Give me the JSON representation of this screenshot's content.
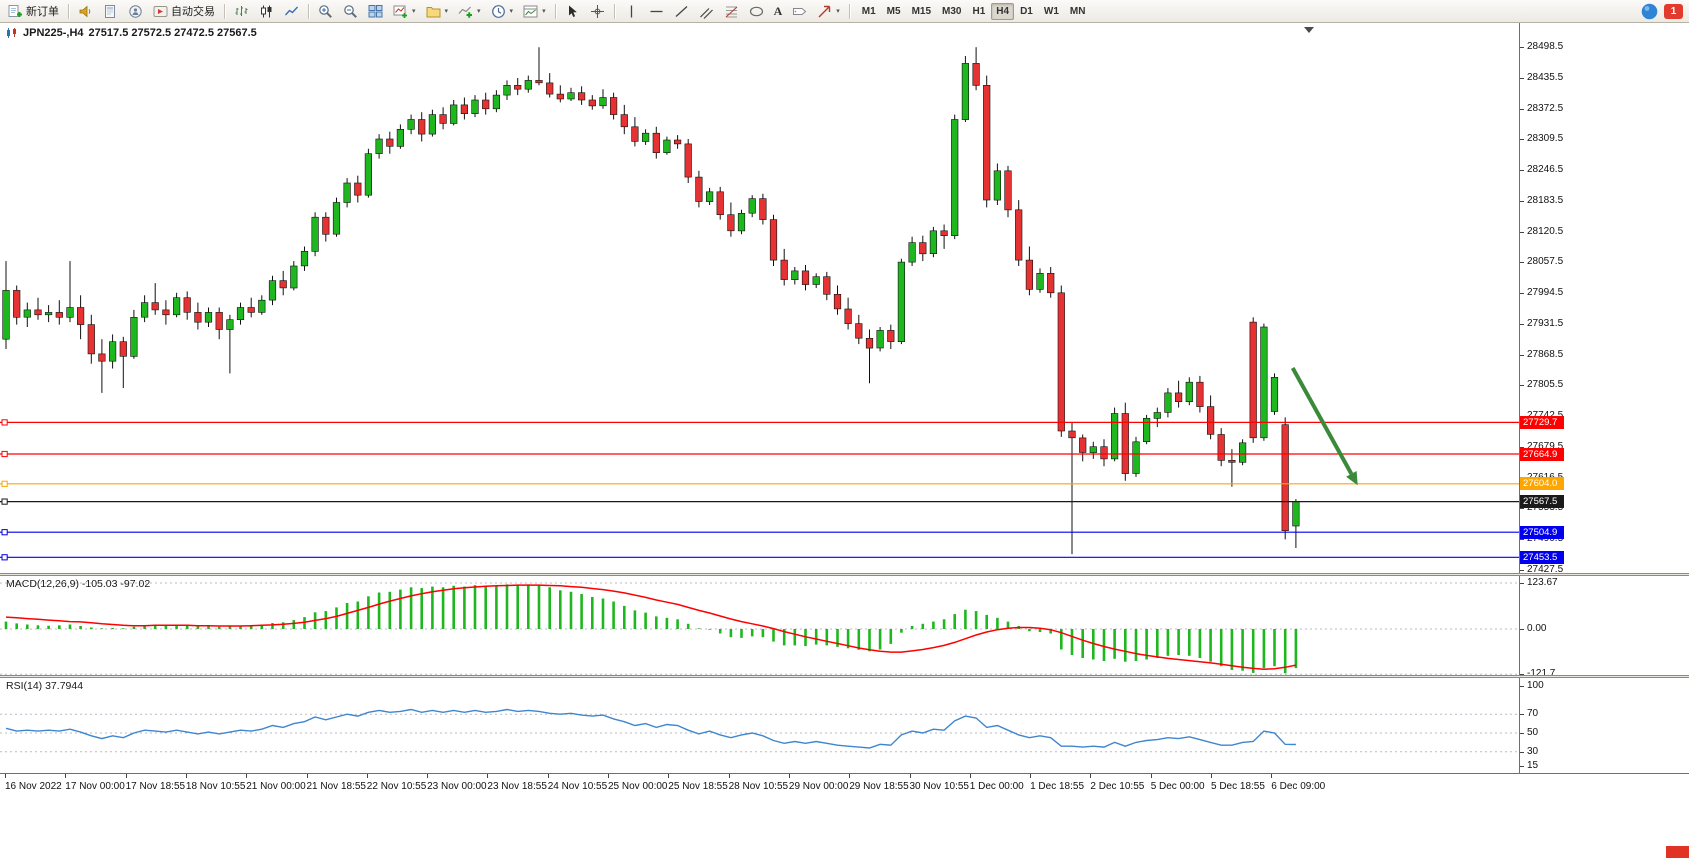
{
  "toolbar": {
    "new_order_label": "新订单",
    "auto_trading_label": "自动交易",
    "timeframes": [
      "M1",
      "M5",
      "M15",
      "M30",
      "H1",
      "H4",
      "D1",
      "W1",
      "MN"
    ],
    "active_timeframe": "H4",
    "notification_badge": "1"
  },
  "chart": {
    "title_symbol": "JPN225-,H4",
    "title_ohlc": "27517.5 27572.5 27472.5 27567.5"
  },
  "levels": [
    {
      "price": "27729.7",
      "value": 27729.7,
      "color": "#FF0000",
      "current": false
    },
    {
      "price": "27664.9",
      "value": 27664.9,
      "color": "#FF0000",
      "current": false
    },
    {
      "price": "27604.0",
      "value": 27604.0,
      "color": "#FFA500",
      "current": false
    },
    {
      "price": "27567.5",
      "value": 27567.5,
      "color": "#1A1A1A",
      "current": true
    },
    {
      "price": "27504.9",
      "value": 27504.9,
      "color": "#0000EE",
      "current": false
    },
    {
      "price": "27453.5",
      "value": 27453.5,
      "color": "#0000EE",
      "current": false
    }
  ],
  "price_axis": {
    "labels": [
      "28498.5",
      "28435.5",
      "28372.5",
      "28309.5",
      "28246.5",
      "28183.5",
      "28120.5",
      "28057.5",
      "27994.5",
      "27931.5",
      "27868.5",
      "27805.5",
      "27742.5",
      "27679.5",
      "27616.5",
      "27553.5",
      "27490.5",
      "27427.5"
    ]
  },
  "macd": {
    "label": "MACD(12,26,9) -105.03 -97.02",
    "scale_labels": [
      "123.67",
      "0.00",
      "-121.7"
    ],
    "scale_values": [
      123.67,
      0,
      -121.7
    ]
  },
  "rsi": {
    "label": "RSI(14) 37.7944",
    "scale_labels": [
      "100",
      "70",
      "50",
      "30",
      "15"
    ],
    "scale_values": [
      100,
      70,
      50,
      30,
      15
    ],
    "gridlines": [
      70,
      50,
      30
    ]
  },
  "time_axis": {
    "labels": [
      "16 Nov 2022",
      "17 Nov 00:00",
      "17 Nov 18:55",
      "18 Nov 10:55",
      "21 Nov 00:00",
      "21 Nov 18:55",
      "22 Nov 10:55",
      "23 Nov 00:00",
      "23 Nov 18:55",
      "24 Nov 10:55",
      "25 Nov 00:00",
      "25 Nov 18:55",
      "28 Nov 10:55",
      "29 Nov 00:00",
      "29 Nov 18:55",
      "30 Nov 10:55",
      "1 Dec 00:00",
      "1 Dec 18:55",
      "2 Dec 10:55",
      "5 Dec 00:00",
      "5 Dec 18:55",
      "6 Dec 09:00"
    ]
  },
  "colors": {
    "bull": "#1FB71F",
    "bear": "#E63232",
    "macd_signal": "#FF0000",
    "rsi_line": "#3E86CF",
    "arrow": "#3A8A3A"
  },
  "chart_data": {
    "type": "candlestick",
    "symbol": "JPN225-",
    "timeframe": "H4",
    "price_range_visible": [
      27427.5,
      28498.5
    ],
    "macd_range": [
      -121.7,
      123.67
    ],
    "rsi_levels": [
      70,
      50,
      30
    ],
    "horizontal_levels": [
      27729.7,
      27664.9,
      27604.0,
      27567.5,
      27504.9,
      27453.5
    ],
    "arrow_annotation": {
      "from": {
        "index": 120.7,
        "price": 27841
      },
      "to": {
        "index": 126.8,
        "price": 27601
      }
    },
    "candles_ohlc": [
      [
        27900,
        28060,
        27880,
        28000
      ],
      [
        28000,
        28010,
        27930,
        27945
      ],
      [
        27945,
        27975,
        27925,
        27960
      ],
      [
        27960,
        27985,
        27940,
        27950
      ],
      [
        27950,
        27970,
        27935,
        27955
      ],
      [
        27955,
        27980,
        27930,
        27945
      ],
      [
        27945,
        28060,
        27935,
        27965
      ],
      [
        27965,
        27990,
        27900,
        27930
      ],
      [
        27930,
        27950,
        27850,
        27870
      ],
      [
        27870,
        27900,
        27790,
        27855
      ],
      [
        27855,
        27910,
        27840,
        27895
      ],
      [
        27895,
        27905,
        27800,
        27865
      ],
      [
        27865,
        27960,
        27860,
        27945
      ],
      [
        27945,
        27990,
        27935,
        27975
      ],
      [
        27975,
        28015,
        27950,
        27960
      ],
      [
        27960,
        27980,
        27930,
        27950
      ],
      [
        27950,
        27995,
        27945,
        27985
      ],
      [
        27985,
        27998,
        27940,
        27955
      ],
      [
        27955,
        27975,
        27920,
        27935
      ],
      [
        27935,
        27965,
        27925,
        27955
      ],
      [
        27955,
        27965,
        27900,
        27920
      ],
      [
        27920,
        27950,
        27830,
        27940
      ],
      [
        27940,
        27975,
        27930,
        27965
      ],
      [
        27965,
        27985,
        27945,
        27955
      ],
      [
        27955,
        27990,
        27950,
        27980
      ],
      [
        27980,
        28030,
        27970,
        28020
      ],
      [
        28020,
        28040,
        27990,
        28005
      ],
      [
        28005,
        28060,
        28000,
        28050
      ],
      [
        28050,
        28090,
        28040,
        28080
      ],
      [
        28080,
        28160,
        28070,
        28150
      ],
      [
        28150,
        28160,
        28100,
        28115
      ],
      [
        28115,
        28190,
        28110,
        28180
      ],
      [
        28180,
        28230,
        28170,
        28220
      ],
      [
        28220,
        28235,
        28180,
        28195
      ],
      [
        28195,
        28290,
        28190,
        28280
      ],
      [
        28280,
        28320,
        28270,
        28310
      ],
      [
        28310,
        28325,
        28280,
        28295
      ],
      [
        28295,
        28340,
        28290,
        28330
      ],
      [
        28330,
        28360,
        28320,
        28350
      ],
      [
        28350,
        28365,
        28305,
        28320
      ],
      [
        28320,
        28370,
        28315,
        28360
      ],
      [
        28360,
        28375,
        28330,
        28342
      ],
      [
        28342,
        28390,
        28338,
        28380
      ],
      [
        28380,
        28395,
        28350,
        28362
      ],
      [
        28362,
        28400,
        28355,
        28390
      ],
      [
        28390,
        28405,
        28360,
        28372
      ],
      [
        28372,
        28410,
        28365,
        28400
      ],
      [
        28400,
        28430,
        28390,
        28420
      ],
      [
        28420,
        28435,
        28400,
        28412
      ],
      [
        28412,
        28440,
        28405,
        28430
      ],
      [
        28430,
        28498,
        28420,
        28425
      ],
      [
        28425,
        28445,
        28395,
        28402
      ],
      [
        28402,
        28420,
        28385,
        28392
      ],
      [
        28392,
        28415,
        28388,
        28405
      ],
      [
        28405,
        28418,
        28380,
        28390
      ],
      [
        28390,
        28400,
        28370,
        28378
      ],
      [
        28378,
        28412,
        28372,
        28395
      ],
      [
        28395,
        28405,
        28350,
        28360
      ],
      [
        28360,
        28380,
        28320,
        28335
      ],
      [
        28335,
        28355,
        28295,
        28305
      ],
      [
        28305,
        28330,
        28298,
        28322
      ],
      [
        28322,
        28335,
        28270,
        28282
      ],
      [
        28282,
        28315,
        28278,
        28308
      ],
      [
        28308,
        28318,
        28290,
        28300
      ],
      [
        28300,
        28310,
        28220,
        28232
      ],
      [
        28232,
        28245,
        28170,
        28182
      ],
      [
        28182,
        28210,
        28175,
        28202
      ],
      [
        28202,
        28212,
        28145,
        28155
      ],
      [
        28155,
        28180,
        28110,
        28122
      ],
      [
        28122,
        28165,
        28115,
        28158
      ],
      [
        28158,
        28195,
        28150,
        28188
      ],
      [
        28188,
        28198,
        28135,
        28145
      ],
      [
        28145,
        28155,
        28050,
        28062
      ],
      [
        28062,
        28085,
        28010,
        28022
      ],
      [
        28022,
        28048,
        28012,
        28040
      ],
      [
        28040,
        28052,
        28000,
        28012
      ],
      [
        28012,
        28035,
        28005,
        28028
      ],
      [
        28028,
        28038,
        27980,
        27992
      ],
      [
        27992,
        28010,
        27950,
        27962
      ],
      [
        27962,
        27985,
        27920,
        27932
      ],
      [
        27932,
        27950,
        27890,
        27902
      ],
      [
        27902,
        27920,
        27810,
        27882
      ],
      [
        27882,
        27925,
        27875,
        27918
      ],
      [
        27918,
        27930,
        27880,
        27895
      ],
      [
        27895,
        28065,
        27890,
        28058
      ],
      [
        28058,
        28110,
        28050,
        28098
      ],
      [
        28098,
        28112,
        28060,
        28075
      ],
      [
        28075,
        28130,
        28068,
        28122
      ],
      [
        28122,
        28135,
        28085,
        28112
      ],
      [
        28112,
        28360,
        28105,
        28350
      ],
      [
        28350,
        28480,
        28345,
        28465
      ],
      [
        28465,
        28498,
        28410,
        28420
      ],
      [
        28420,
        28440,
        28170,
        28185
      ],
      [
        28185,
        28260,
        28175,
        28245
      ],
      [
        28245,
        28255,
        28150,
        28165
      ],
      [
        28165,
        28185,
        28050,
        28062
      ],
      [
        28062,
        28090,
        27990,
        28002
      ],
      [
        28002,
        28045,
        27995,
        28035
      ],
      [
        28035,
        28048,
        27985,
        27995
      ],
      [
        27995,
        28010,
        27700,
        27712
      ],
      [
        27712,
        27730,
        27460,
        27698
      ],
      [
        27698,
        27705,
        27650,
        27668
      ],
      [
        27668,
        27690,
        27655,
        27680
      ],
      [
        27680,
        27695,
        27640,
        27655
      ],
      [
        27655,
        27760,
        27650,
        27748
      ],
      [
        27748,
        27770,
        27610,
        27625
      ],
      [
        27625,
        27700,
        27618,
        27690
      ],
      [
        27690,
        27745,
        27685,
        27738
      ],
      [
        27738,
        27760,
        27720,
        27750
      ],
      [
        27750,
        27800,
        27740,
        27790
      ],
      [
        27790,
        27815,
        27760,
        27772
      ],
      [
        27772,
        27822,
        27765,
        27812
      ],
      [
        27812,
        27825,
        27750,
        27762
      ],
      [
        27762,
        27785,
        27695,
        27705
      ],
      [
        27705,
        27718,
        27640,
        27652
      ],
      [
        27652,
        27675,
        27598,
        27648
      ],
      [
        27648,
        27695,
        27642,
        27688
      ],
      [
        27935,
        27945,
        27688,
        27698
      ],
      [
        27698,
        27932,
        27692,
        27925
      ],
      [
        27752,
        27830,
        27745,
        27822
      ],
      [
        27725,
        27740,
        27490,
        27508
      ],
      [
        27517.5,
        27572.5,
        27472.5,
        27567.5
      ]
    ],
    "macd_hist": [
      20,
      15,
      12,
      10,
      9,
      10,
      12,
      8,
      4,
      2,
      3,
      2,
      6,
      10,
      12,
      10,
      11,
      9,
      7,
      8,
      6,
      7,
      9,
      9,
      11,
      16,
      18,
      24,
      32,
      45,
      48,
      58,
      70,
      74,
      88,
      98,
      100,
      106,
      112,
      110,
      114,
      112,
      116,
      114,
      118,
      115,
      117,
      120,
      118,
      120,
      118,
      112,
      104,
      100,
      94,
      86,
      82,
      74,
      62,
      50,
      44,
      34,
      30,
      26,
      14,
      2,
      -2,
      -12,
      -22,
      -24,
      -20,
      -22,
      -34,
      -44,
      -44,
      -46,
      -42,
      -44,
      -48,
      -52,
      -56,
      -60,
      -55,
      -40,
      -10,
      8,
      14,
      20,
      26,
      40,
      52,
      48,
      38,
      30,
      20,
      8,
      -6,
      -8,
      -12,
      -55,
      -70,
      -78,
      -82,
      -86,
      -80,
      -88,
      -86,
      -82,
      -78,
      -72,
      -70,
      -72,
      -78,
      -88,
      -100,
      -110,
      -112,
      -118,
      -105,
      -100,
      -119,
      -105.03
    ],
    "macd_signal": [
      32,
      30,
      28,
      26,
      24,
      22,
      20,
      19,
      17,
      14,
      12,
      10,
      9,
      9,
      10,
      10,
      10,
      10,
      9,
      9,
      8,
      8,
      8,
      9,
      10,
      11,
      13,
      15,
      18,
      23,
      28,
      34,
      42,
      50,
      58,
      67,
      75,
      82,
      89,
      95,
      100,
      104,
      108,
      111,
      113,
      115,
      116,
      117,
      118,
      118,
      118,
      117,
      116,
      114,
      112,
      109,
      106,
      102,
      97,
      91,
      85,
      78,
      72,
      66,
      58,
      50,
      43,
      35,
      27,
      20,
      14,
      8,
      1,
      -7,
      -14,
      -21,
      -27,
      -33,
      -39,
      -45,
      -51,
      -56,
      -60,
      -62,
      -62,
      -59,
      -55,
      -50,
      -44,
      -36,
      -26,
      -16,
      -8,
      -2,
      2,
      4,
      4,
      2,
      -2,
      -10,
      -20,
      -30,
      -39,
      -47,
      -54,
      -60,
      -66,
      -71,
      -75,
      -79,
      -82,
      -85,
      -88,
      -91,
      -95,
      -99,
      -103,
      -106,
      -108,
      -107,
      -103,
      -97.02
    ],
    "rsi_values": [
      55,
      52,
      53,
      52,
      53,
      52,
      54,
      51,
      47,
      44,
      47,
      45,
      50,
      53,
      52,
      51,
      53,
      51,
      49,
      51,
      49,
      51,
      53,
      52,
      54,
      58,
      56,
      60,
      62,
      67,
      64,
      67,
      70,
      68,
      72,
      74,
      72,
      73,
      75,
      72,
      74,
      72,
      74,
      72,
      74,
      72,
      73,
      75,
      73,
      74,
      73,
      71,
      70,
      71,
      69,
      68,
      69,
      65,
      62,
      58,
      60,
      56,
      59,
      58,
      53,
      49,
      52,
      48,
      45,
      48,
      50,
      47,
      42,
      39,
      41,
      39,
      41,
      39,
      37,
      36,
      35,
      34,
      38,
      37,
      48,
      52,
      50,
      54,
      53,
      63,
      68,
      66,
      56,
      58,
      53,
      48,
      45,
      47,
      45,
      36,
      36,
      35,
      36,
      35,
      40,
      36,
      40,
      42,
      43,
      45,
      44,
      46,
      43,
      40,
      37,
      37,
      40,
      41,
      52,
      50,
      38,
      37.79
    ]
  }
}
